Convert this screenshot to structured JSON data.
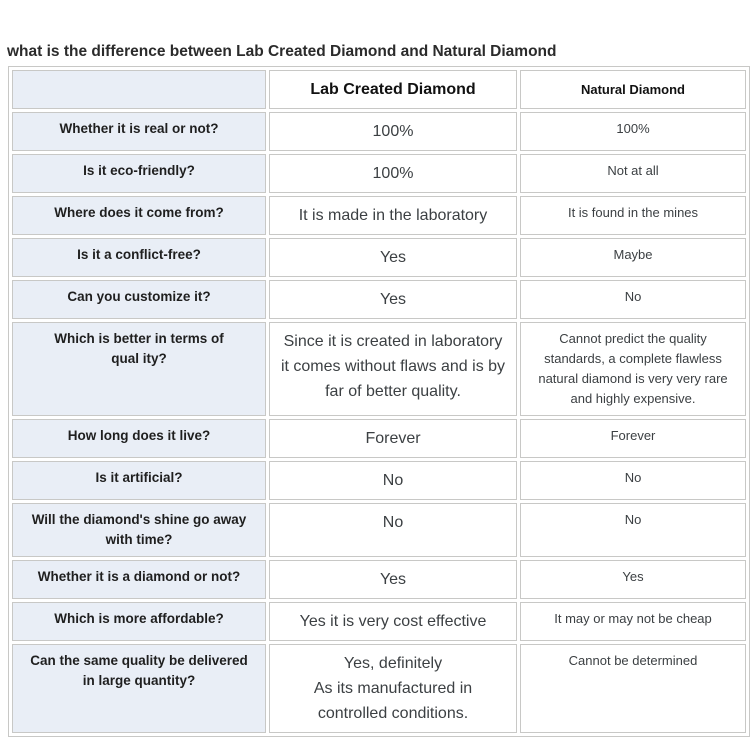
{
  "page": {
    "title": "what is the difference between Lab Created Diamond and Natural Diamond"
  },
  "style": {
    "question_cell_bg": "#e9eef6",
    "border_color": "#c8c8c6",
    "answer_text_color": "#3c4043"
  },
  "table": {
    "columns": [
      "",
      "Lab Created Diamond",
      "Natural Diamond"
    ],
    "rows": [
      {
        "question": "Whether it is real or not?",
        "lab": "100%",
        "natural": "100%"
      },
      {
        "question": "Is it eco-friendly?",
        "lab": "100%",
        "natural": "Not at all"
      },
      {
        "question": "Where does it come from?",
        "lab": "It is made in the laboratory",
        "natural": "It is found in the mines"
      },
      {
        "question": "Is it a conflict-free?",
        "lab": "Yes",
        "natural": "Maybe"
      },
      {
        "question": "Can you customize it?",
        "lab": "Yes",
        "natural": "No"
      },
      {
        "question": "Which is better in terms of\nqual ity?",
        "lab": "Since it is created in laboratory it comes without flaws and is by far of better quality.",
        "natural": "Cannot predict the quality standards, a complete flawless natural diamond is very very rare and highly expensive."
      },
      {
        "question": "How long does it live?",
        "lab": "Forever",
        "natural": "Forever"
      },
      {
        "question": "Is it artificial?",
        "lab": "No",
        "natural": "No"
      },
      {
        "question": "Will the diamond's shine go away\nwith time?",
        "lab": "No",
        "natural": "No"
      },
      {
        "question": "Whether it is a diamond or not?",
        "lab": "Yes",
        "natural": "Yes"
      },
      {
        "question": "Which is more affordable?",
        "lab": "Yes it is very cost effective",
        "natural": "It may or may not be cheap"
      },
      {
        "question": "Can the same quality be delivered\nin large quantity?",
        "lab": "Yes, definitely\nAs its manufactured in\ncontrolled conditions.",
        "natural": "Cannot be determined"
      }
    ]
  }
}
